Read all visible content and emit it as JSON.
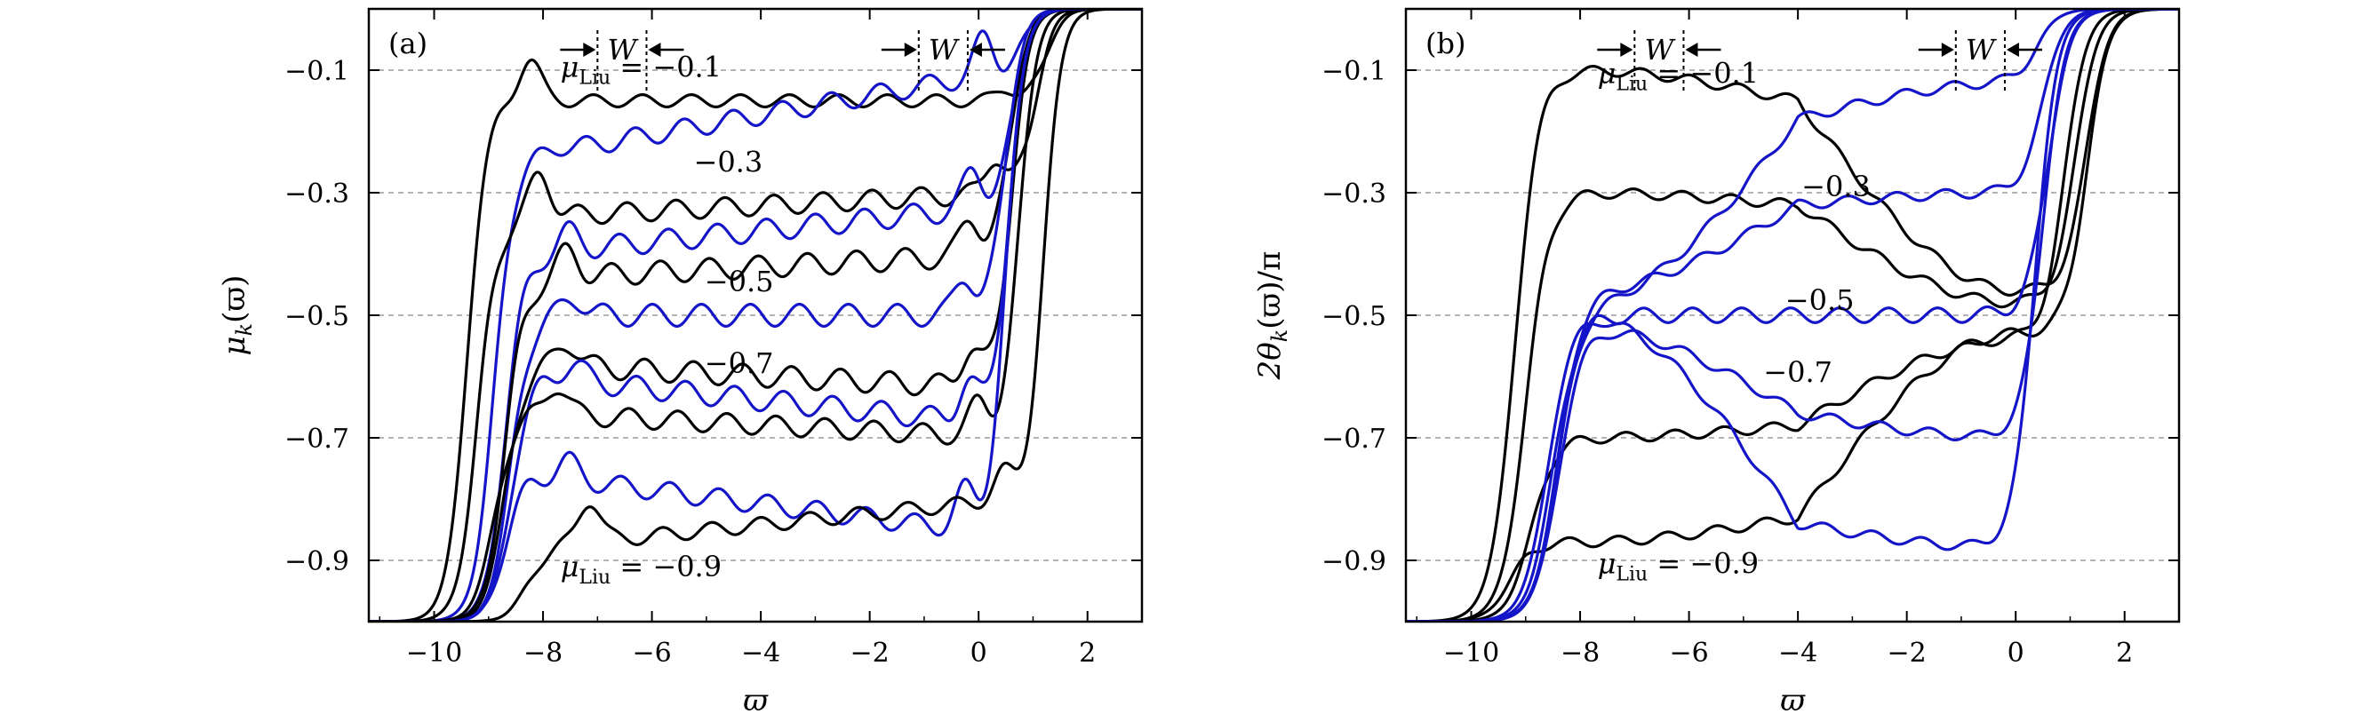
{
  "figure": {
    "colors": {
      "black_series": "#000000",
      "blue_series": "#1414c8",
      "grid": "#9a9a9a"
    }
  },
  "chart_data": [
    {
      "type": "line",
      "panel_label": "(a)",
      "xlabel": "ϖ",
      "ylabel": "μk(ϖ)",
      "ylabel_main": "μ",
      "ylabel_sub": "k",
      "ylabel_tail": "(ϖ)",
      "xlim": [
        -11.2,
        3.0
      ],
      "ylim": [
        -1.0,
        0.0
      ],
      "xticks": [
        -10,
        -8,
        -6,
        -4,
        -2,
        0,
        2
      ],
      "xtick_labels": [
        "−10",
        "−8",
        "−6",
        "−4",
        "−2",
        "0",
        "2"
      ],
      "yticks": [
        -0.1,
        -0.3,
        -0.5,
        -0.7,
        -0.9
      ],
      "ytick_labels": [
        "−0.1",
        "−0.3",
        "−0.5",
        "−0.7",
        "−0.9"
      ],
      "grid": "horizontal dashed at y ticks",
      "plateau_x_range": [
        -8.2,
        0.6
      ],
      "series": [
        {
          "name": "μLiu = −0.1 (black)",
          "color": "black",
          "left_edge": -9.4,
          "right_edge": 1.25,
          "spike_left": 0.07,
          "plateau_start": -0.15,
          "plateau_end": -0.15,
          "spike_right": 0.02,
          "osc_amp": 0.01
        },
        {
          "name": "μLiu = −0.1 (blue)",
          "color": "blue",
          "left_edge": -8.9,
          "right_edge": 0.85,
          "spike_left": 0.01,
          "plateau_start": -0.24,
          "plateau_end": -0.1,
          "spike_right": 0.06,
          "osc_amp": 0.016
        },
        {
          "name": "μLiu = −0.3 (black)",
          "color": "black",
          "left_edge": -9.2,
          "right_edge": 1.05,
          "spike_left": 0.07,
          "plateau_start": -0.34,
          "plateau_end": -0.3,
          "spike_right": 0.06,
          "osc_amp": 0.016
        },
        {
          "name": "μLiu = −0.3 (blue)",
          "color": "blue",
          "left_edge": -8.7,
          "right_edge": 0.65,
          "spike_left": 0.03,
          "plateau_start": -0.4,
          "plateau_end": -0.32,
          "spike_right": 0.06,
          "osc_amp": 0.018
        },
        {
          "name": "μLiu = −0.5 (black)",
          "color": "black",
          "left_edge": -8.7,
          "right_edge": 0.6,
          "spike_left": 0.04,
          "plateau_start": -0.44,
          "plateau_end": -0.4,
          "spike_right": 0.06,
          "osc_amp": 0.018
        },
        {
          "name": "μLiu = −0.5 (blue)",
          "color": "blue",
          "left_edge": -8.6,
          "right_edge": 0.5,
          "spike_left": 0.03,
          "plateau_start": -0.5,
          "plateau_end": -0.5,
          "spike_right": 0.06,
          "osc_amp": 0.018
        },
        {
          "name": "μLiu = −0.7 (black)",
          "color": "black",
          "left_edge": -8.7,
          "right_edge": 0.6,
          "spike_left": 0.04,
          "plateau_start": -0.58,
          "plateau_end": -0.62,
          "spike_right": 0.06,
          "osc_amp": 0.018
        },
        {
          "name": "μLiu = −0.7 (blue)",
          "color": "blue",
          "left_edge": -8.6,
          "right_edge": 0.55,
          "spike_left": 0.03,
          "plateau_start": -0.6,
          "plateau_end": -0.68,
          "spike_right": 0.06,
          "osc_amp": 0.018
        },
        {
          "name": "μLiu = −0.7 (black, lower)",
          "color": "black",
          "left_edge": -8.9,
          "right_edge": 0.75,
          "spike_left": 0.05,
          "plateau_start": -0.66,
          "plateau_end": -0.7,
          "spike_right": 0.05,
          "osc_amp": 0.016
        },
        {
          "name": "μLiu = −0.9 (blue)",
          "color": "blue",
          "left_edge": -8.7,
          "right_edge": 0.5,
          "spike_left": 0.03,
          "plateau_start": -0.76,
          "plateau_end": -0.86,
          "spike_right": 0.06,
          "osc_amp": 0.016
        },
        {
          "name": "μLiu = −0.9 (black)",
          "color": "black",
          "left_edge": -8.3,
          "right_edge": 1.2,
          "spike_left": 0.07,
          "plateau_start": -0.88,
          "plateau_end": -0.8,
          "spike_right": 0.04,
          "osc_amp": 0.012
        }
      ],
      "annotations": [
        {
          "text_main": "μ",
          "text_sub": "Liu",
          "text_tail": " = −0.1",
          "x": -6.2,
          "y": -0.095
        },
        {
          "text": "−0.3",
          "x": -4.6,
          "y": -0.25
        },
        {
          "text": "−0.5",
          "x": -4.4,
          "y": -0.445
        },
        {
          "text": "−0.7",
          "x": -4.4,
          "y": -0.578
        },
        {
          "text_main": "μ",
          "text_sub": "Liu",
          "text_tail": " = −0.9",
          "x": -6.2,
          "y": -0.91
        }
      ],
      "width_markers": [
        {
          "label": "W",
          "x_left": -7.0,
          "x_right": -6.1
        },
        {
          "label": "W",
          "x_left": -1.1,
          "x_right": -0.2
        }
      ]
    },
    {
      "type": "line",
      "panel_label": "(b)",
      "xlabel": "ϖ",
      "ylabel": "2θk(ϖ)/π",
      "ylabel_main": "2θ",
      "ylabel_sub": "k",
      "ylabel_tail": "(ϖ)/π",
      "xlim": [
        -11.2,
        3.0
      ],
      "ylim": [
        -1.0,
        0.0
      ],
      "xticks": [
        -10,
        -8,
        -6,
        -4,
        -2,
        0,
        2
      ],
      "xtick_labels": [
        "−10",
        "−8",
        "−6",
        "−4",
        "−2",
        "0",
        "2"
      ],
      "yticks": [
        -0.1,
        -0.3,
        -0.5,
        -0.7,
        -0.9
      ],
      "ytick_labels": [
        "−0.1",
        "−0.3",
        "−0.5",
        "−0.7",
        "−0.9"
      ],
      "grid": "horizontal dashed at y ticks",
      "plateau_x_range": [
        -8.0,
        0.0
      ],
      "series": [
        {
          "name": "μLiu = −0.1 (black)",
          "color": "black",
          "left_edge": -9.2,
          "right_edge": 1.3,
          "start_value": -0.1,
          "mid_value": -0.15,
          "end_value": -0.46,
          "bulge": 0.0,
          "osc_amp": 0.008
        },
        {
          "name": "μLiu = −0.3 (black)",
          "color": "black",
          "left_edge": -9.0,
          "right_edge": 1.1,
          "start_value": -0.3,
          "mid_value": -0.32,
          "end_value": -0.48,
          "bulge": 0.0,
          "osc_amp": 0.008
        },
        {
          "name": "μLiu = −0.7 (black)",
          "color": "black",
          "left_edge": -8.9,
          "right_edge": 0.9,
          "start_value": -0.7,
          "mid_value": -0.68,
          "end_value": -0.54,
          "bulge": 0.0,
          "osc_amp": 0.008
        },
        {
          "name": "μLiu = −0.9 (black)",
          "color": "black",
          "left_edge": -9.3,
          "right_edge": 1.3,
          "start_value": -0.87,
          "mid_value": -0.83,
          "end_value": -0.53,
          "bulge": 0.0,
          "osc_amp": 0.008
        },
        {
          "name": "μLiu = −0.1 (blue)",
          "color": "blue",
          "left_edge": -8.4,
          "right_edge": 0.4,
          "start_value": -0.48,
          "mid_value": -0.18,
          "end_value": -0.12,
          "bulge": 0.0,
          "osc_amp": 0.008
        },
        {
          "name": "μLiu = −0.3 (blue)",
          "color": "blue",
          "left_edge": -8.4,
          "right_edge": 0.5,
          "start_value": -0.46,
          "mid_value": -0.32,
          "end_value": -0.3,
          "bulge": 0.0,
          "osc_amp": 0.008
        },
        {
          "name": "μLiu = −0.5 (blue)",
          "color": "blue",
          "left_edge": -8.5,
          "right_edge": 0.6,
          "start_value": -0.5,
          "mid_value": -0.5,
          "end_value": -0.5,
          "bulge": 0.0,
          "osc_amp": 0.012
        },
        {
          "name": "μLiu = −0.7 (blue)",
          "color": "blue",
          "left_edge": -8.4,
          "right_edge": 0.5,
          "start_value": -0.52,
          "mid_value": -0.66,
          "end_value": -0.7,
          "bulge": 0.0,
          "osc_amp": 0.008
        },
        {
          "name": "μLiu = −0.9 (blue)",
          "color": "blue",
          "left_edge": -8.6,
          "right_edge": 0.35,
          "start_value": -0.5,
          "mid_value": -0.84,
          "end_value": -0.88,
          "bulge": 0.0,
          "osc_amp": 0.008
        }
      ],
      "annotations": [
        {
          "text_main": "μ",
          "text_sub": "Liu",
          "text_tail": " = −0.1",
          "x": -6.2,
          "y": -0.105
        },
        {
          "text": "−0.3",
          "x": -3.3,
          "y": -0.29
        },
        {
          "text": "−0.5",
          "x": -3.6,
          "y": -0.475
        },
        {
          "text": "−0.7",
          "x": -4.0,
          "y": -0.593
        },
        {
          "text_main": "μ",
          "text_sub": "Liu",
          "text_tail": " = −0.9",
          "x": -6.2,
          "y": -0.905
        }
      ],
      "width_markers": [
        {
          "label": "W",
          "x_left": -7.0,
          "x_right": -6.1
        },
        {
          "label": "W",
          "x_left": -1.1,
          "x_right": -0.2
        }
      ]
    }
  ]
}
